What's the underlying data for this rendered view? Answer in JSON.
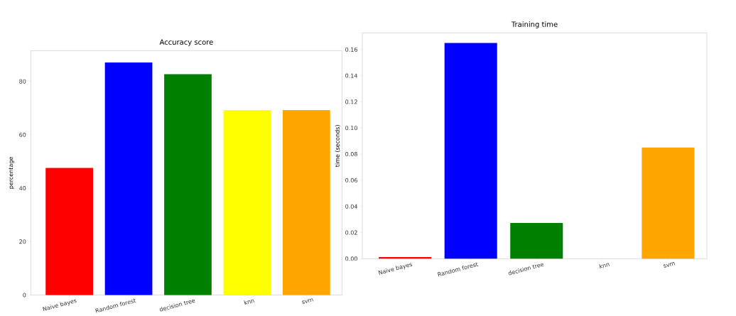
{
  "chart_data": [
    {
      "type": "bar",
      "title": "Accuracy score",
      "ylabel": "percentage",
      "categories": [
        "Naive bayes",
        "Random forest",
        "decision tree",
        "knn",
        "svm"
      ],
      "values": [
        47.6,
        87.1,
        82.7,
        69.3,
        69.3
      ],
      "colors": [
        "#ff0000",
        "#0000ff",
        "#008000",
        "#ffff00",
        "#ffa500"
      ],
      "ylim": [
        0,
        91.5
      ],
      "yticks": [
        0,
        20,
        40,
        60,
        80
      ]
    },
    {
      "type": "bar",
      "title": "Training time",
      "ylabel": "time (seconds)",
      "categories": [
        "Naive bayes",
        "Random forest",
        "decision tree",
        "knn",
        "svm"
      ],
      "values": [
        0.0013,
        0.165,
        0.0273,
        null,
        0.085
      ],
      "colors": [
        "#ff0000",
        "#0000ff",
        "#008000",
        "#ffff00",
        "#ffa500"
      ],
      "ylim": [
        0,
        0.1727
      ],
      "yticks": [
        {
          "value": 0,
          "label": "0.00"
        },
        {
          "value": 0.02,
          "label": "0.02"
        },
        {
          "value": 0.04,
          "label": "0.04"
        },
        {
          "value": 0.06,
          "label": "0.06"
        },
        {
          "value": 0.08,
          "label": "0.08"
        },
        {
          "value": 0.1,
          "label": "0.10"
        },
        {
          "value": 0.12,
          "label": "0.12"
        },
        {
          "value": 0.14,
          "label": "0.14"
        },
        {
          "value": 0.16,
          "label": "0.16"
        }
      ]
    }
  ]
}
